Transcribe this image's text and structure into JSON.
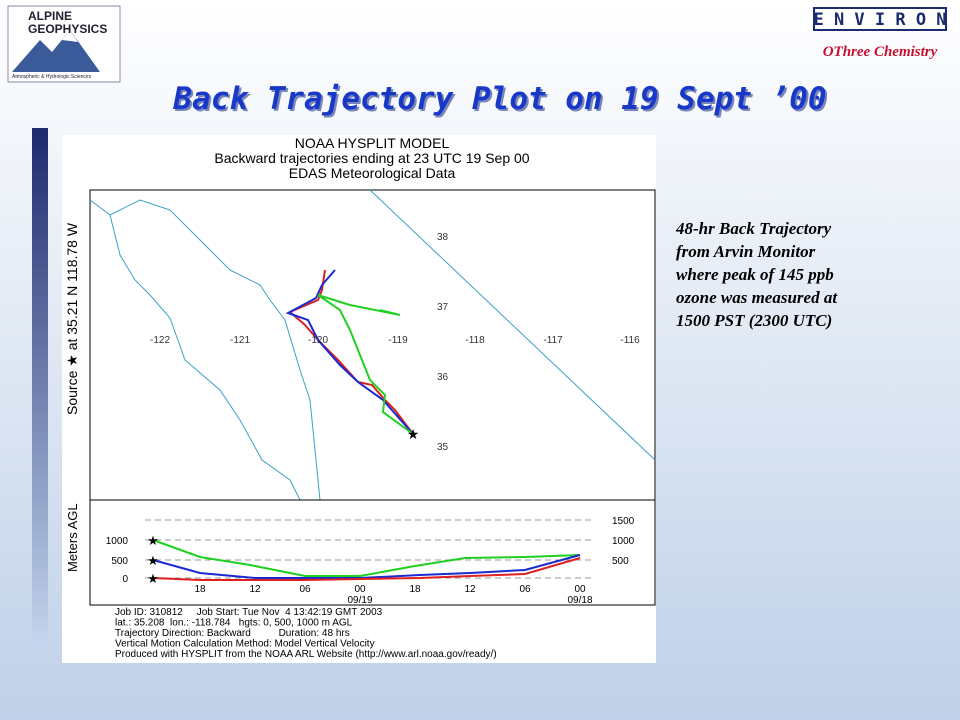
{
  "header": {
    "logo_line1": "ALPINE",
    "logo_line2": "GEOPHYSICS",
    "logo_tagline": "Atmospheric & Hydrologic Sciences",
    "brand": "E N V I R O N",
    "subtitle": "OThree Chemistry"
  },
  "title": "Back Trajectory Plot on 19 Sept ’00",
  "figure": {
    "heading": [
      "NOAA HYSPLIT MODEL",
      "Backward trajectories ending at 23 UTC 19 Sep 00",
      "EDAS Meteorological Data"
    ],
    "source_label": "Source ★ at 35.21 N 118.78 W",
    "lat_labels": [
      "38",
      "37",
      "36",
      "35"
    ],
    "lon_labels": [
      "-122",
      "-121",
      "-120",
      "-119",
      "-118",
      "-117",
      "-116"
    ],
    "height_axis_title": "Meters AGL",
    "height_left_ticks": [
      "1000",
      "500",
      "0"
    ],
    "height_right_ticks": [
      "1500",
      "1000",
      "500"
    ],
    "time_labels": [
      "18",
      "12",
      "06",
      "00",
      "18",
      "12",
      "06",
      "00"
    ],
    "date_labels": [
      "09/19",
      "09/18"
    ],
    "footer": [
      "Job ID: 310812     Job Start: Tue Nov  4 13:42:19 GMT 2003",
      "lat.: 35.208  lon.: -118.784   hgts: 0, 500, 1000 m AGL",
      "Trajectory Direction: Backward          Duration: 48 hrs",
      "Vertical Motion Calculation Method: Model Vertical Velocity",
      "Produced with HYSPLIT from the NOAA ARL Website (http://www.arl.noaa.gov/ready/)"
    ]
  },
  "description": [
    "48-hr Back Trajectory",
    "from Arvin Monitor",
    "where peak of 145 ppb",
    "ozone was measured at",
    "1500 PST (2300 UTC)"
  ]
}
